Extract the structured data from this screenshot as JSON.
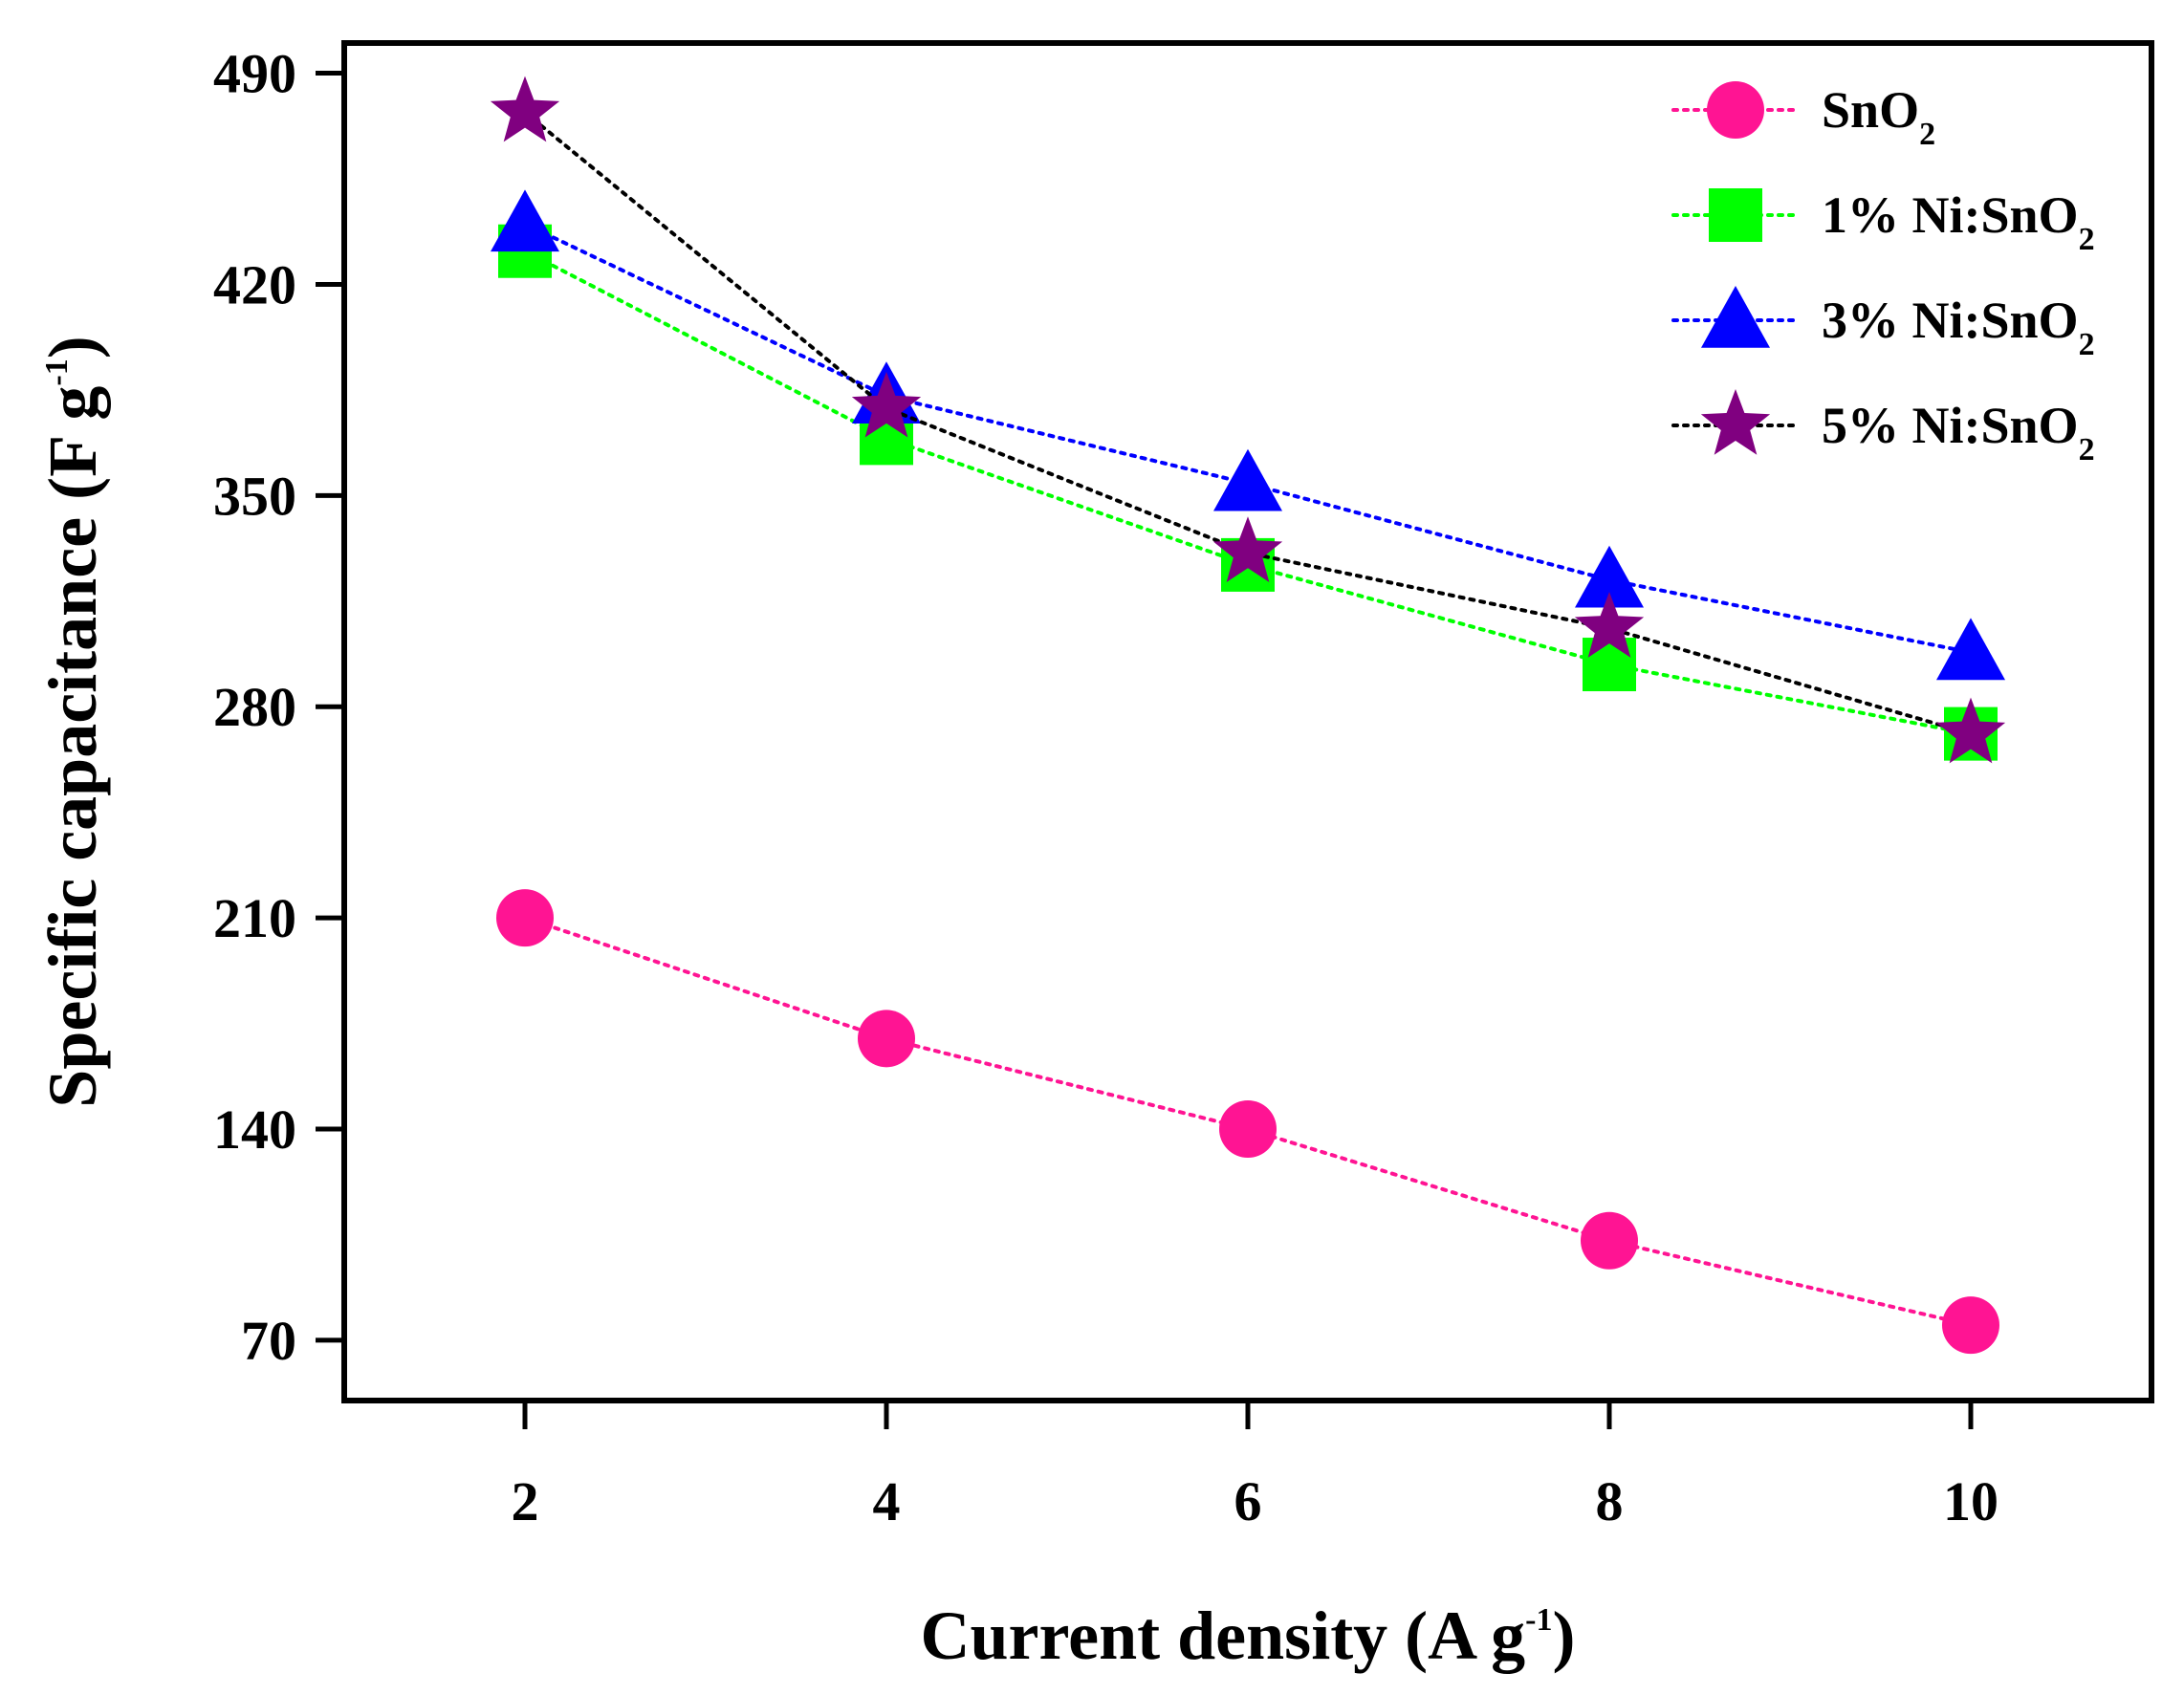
{
  "chart_data": {
    "type": "line",
    "title": "",
    "xlabel": {
      "main": "Current density (A g",
      "sup": "-1",
      "close": ")"
    },
    "ylabel": {
      "main": "Specific capacitance (F g",
      "sup": "-1",
      "close": ")"
    },
    "x": [
      2,
      4,
      6,
      8,
      10
    ],
    "xticks": [
      "2",
      "4",
      "6",
      "8",
      "10"
    ],
    "xlim": [
      1,
      11
    ],
    "yticks": [
      "70",
      "140",
      "210",
      "280",
      "350",
      "420",
      "490"
    ],
    "ylim": [
      50,
      500
    ],
    "grid": false,
    "legend_position": "top-right",
    "series": [
      {
        "name": "SnO2",
        "label_main": "SnO",
        "label_sub": "2",
        "marker": "circle",
        "color": "#ff1493",
        "values": [
          210,
          170,
          140,
          103,
          75
        ]
      },
      {
        "name": "1% Ni:SnO2",
        "label_main": "1% Ni:SnO",
        "label_sub": "2",
        "marker": "square",
        "color": "#00ff00",
        "values": [
          431,
          369,
          327,
          294,
          271
        ]
      },
      {
        "name": "3% Ni:SnO2",
        "label_main": "3% Ni:SnO",
        "label_sub": "2",
        "marker": "triangle",
        "color": "#0000ff",
        "values": [
          440,
          383,
          354,
          322,
          298
        ]
      },
      {
        "name": "5% Ni:SnO2",
        "label_main": "5% Ni:SnO",
        "label_sub": "2",
        "marker": "star",
        "color": "#800080",
        "line_color": "#000000",
        "values": [
          477,
          379,
          331,
          306,
          271
        ]
      }
    ]
  }
}
